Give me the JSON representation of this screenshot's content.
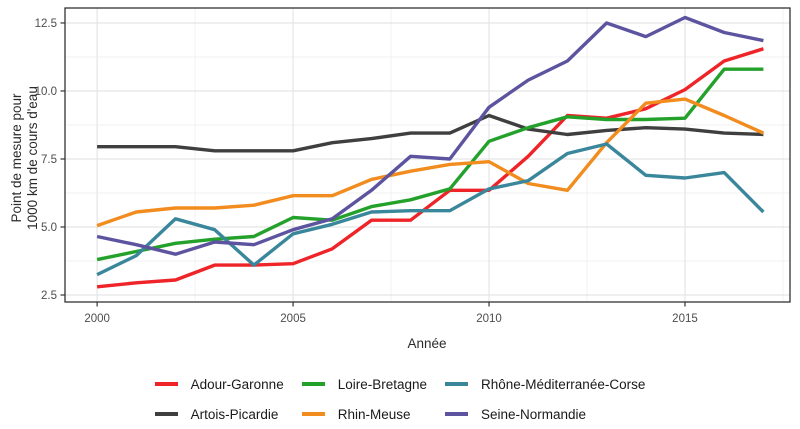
{
  "chart_data": {
    "type": "line",
    "title": "",
    "xlabel": "Année",
    "ylabel": "Point de mesure pour 1000 km de cours d'eau",
    "ylabel_lines": [
      "Point de mesure pour",
      "1000 km de cours d'eau"
    ],
    "x": [
      2000,
      2001,
      2002,
      2003,
      2004,
      2005,
      2006,
      2007,
      2008,
      2009,
      2010,
      2011,
      2012,
      2013,
      2014,
      2015,
      2016,
      2017
    ],
    "x_ticks": [
      2000,
      2005,
      2010,
      2015
    ],
    "x_tick_labels": [
      "2000",
      "2005",
      "2010",
      "2015"
    ],
    "x_minor": [
      2002.5,
      2007.5,
      2012.5,
      2017.5
    ],
    "y_ticks": [
      2.5,
      5.0,
      7.5,
      10.0,
      12.5
    ],
    "y_tick_labels": [
      "2.5",
      "5.0",
      "7.5",
      "10.0",
      "12.5"
    ],
    "y_minor": [
      3.75,
      6.25,
      8.75,
      11.25
    ],
    "xlim": [
      1999.18,
      2017.68
    ],
    "ylim": [
      2.243,
      13.05
    ],
    "grid": "major+minor",
    "legend_position": "bottom",
    "series": [
      {
        "name": "Adour-Garonne",
        "color": "#ee2428",
        "values": [
          2.8,
          2.95,
          3.05,
          3.6,
          3.6,
          3.65,
          4.2,
          5.25,
          5.25,
          6.35,
          6.35,
          7.6,
          9.1,
          9.0,
          9.35,
          10.05,
          11.1,
          11.55
        ]
      },
      {
        "name": "Artois-Picardie",
        "color": "#3f3f3f",
        "values": [
          7.95,
          7.95,
          7.95,
          7.8,
          7.8,
          7.8,
          8.1,
          8.25,
          8.45,
          8.45,
          9.1,
          8.6,
          8.4,
          8.55,
          8.65,
          8.6,
          8.45,
          8.4
        ]
      },
      {
        "name": "Loire-Bretagne",
        "color": "#23a12b",
        "values": [
          3.8,
          4.1,
          4.4,
          4.55,
          4.65,
          5.35,
          5.25,
          5.75,
          6.0,
          6.4,
          8.15,
          8.65,
          9.05,
          8.95,
          8.95,
          9.0,
          10.8,
          10.8
        ]
      },
      {
        "name": "Rhin-Meuse",
        "color": "#f28c1e",
        "values": [
          5.05,
          5.55,
          5.7,
          5.7,
          5.8,
          6.15,
          6.15,
          6.75,
          7.05,
          7.3,
          7.4,
          6.6,
          6.35,
          8.1,
          9.55,
          9.7,
          9.1,
          8.45
        ]
      },
      {
        "name": "Rhône-Méditerranée-Corse",
        "color": "#3a879c",
        "values": [
          3.25,
          3.95,
          5.3,
          4.9,
          3.6,
          4.75,
          5.1,
          5.55,
          5.6,
          5.6,
          6.4,
          6.7,
          7.7,
          8.05,
          6.9,
          6.8,
          7.0,
          5.55
        ]
      },
      {
        "name": "Seine-Normandie",
        "color": "#5d54a0",
        "values": [
          4.65,
          4.35,
          4.0,
          4.45,
          4.35,
          4.9,
          5.3,
          6.35,
          7.6,
          7.5,
          9.4,
          10.4,
          11.1,
          12.5,
          12.0,
          12.7,
          12.15,
          11.85
        ]
      }
    ],
    "style": {
      "background": "#ffffff",
      "grid_major": "#e5e5e5",
      "grid_minor": "#f2f2f2",
      "panel_border": "#333333",
      "tick_color": "#333333",
      "tick_label_color": "#4d4d4d",
      "line_width": 3.4
    }
  }
}
